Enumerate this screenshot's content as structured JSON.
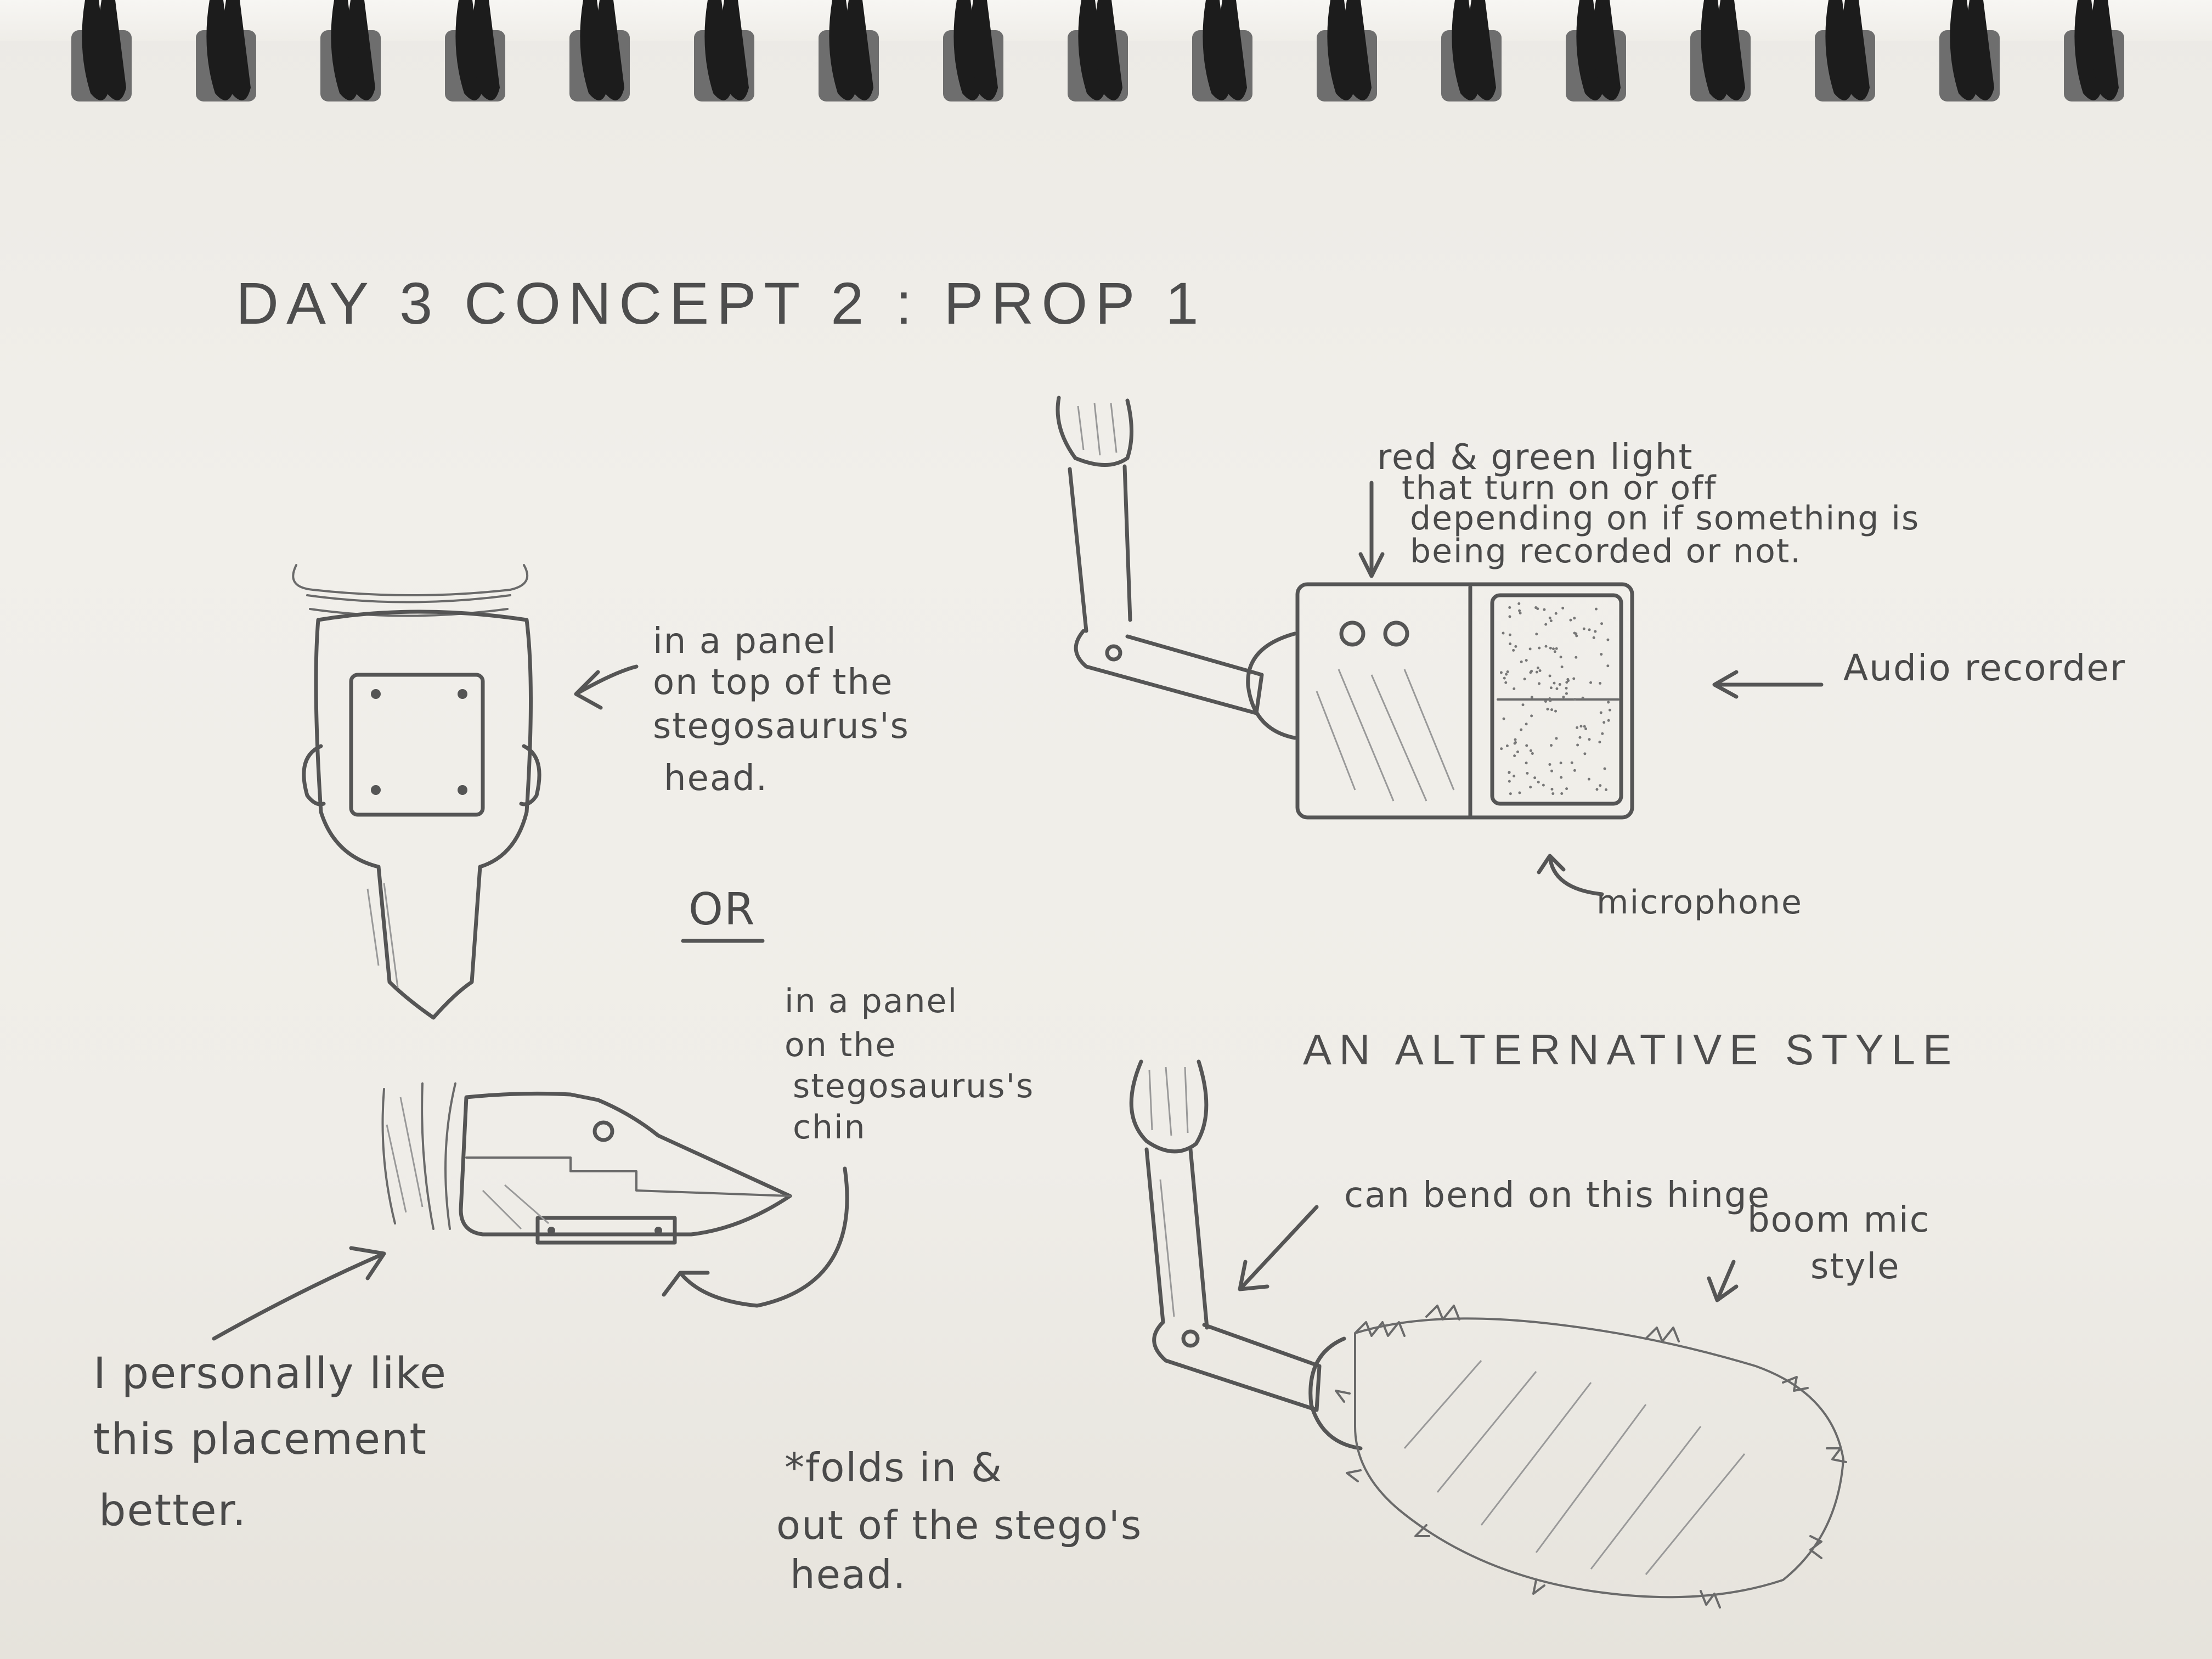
{
  "heading": "DAY 3 CONCEPT 2 : PROP 1",
  "top_left_note": [
    "in a panel",
    "on top of the",
    "stegosaurus's",
    "head."
  ],
  "or_label": "OR",
  "chin_note": [
    "in a panel",
    "on the",
    "stegosaurus's",
    "chin"
  ],
  "preference_note": [
    "I personally like",
    "this placement",
    "better."
  ],
  "fold_note": [
    "*folds in &",
    "out of the stego's",
    "head."
  ],
  "light_note": [
    "red & green light",
    "that turn on or off",
    "depending on if something is",
    "being recorded or not."
  ],
  "recorder_label": "Audio recorder",
  "microphone_label": "microphone",
  "alt_heading": "AN ALTERNATIVE STYLE",
  "hinge_note": "can bend on this hinge",
  "boom_note": [
    "boom mic",
    "style"
  ],
  "rings": 17
}
